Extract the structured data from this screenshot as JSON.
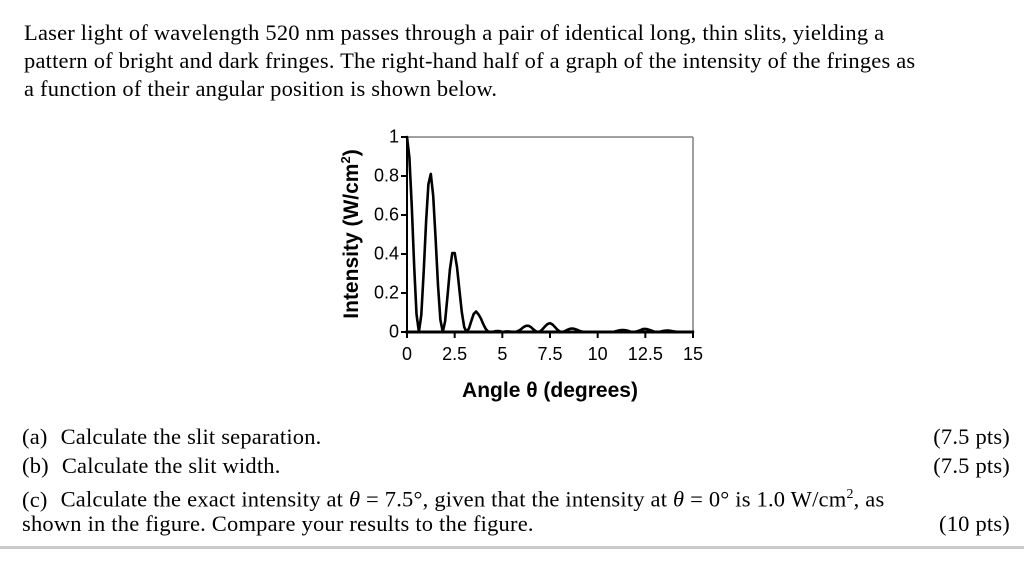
{
  "intro": {
    "lines": [
      "Laser light of wavelength 520 nm passes through a pair of identical long, thin slits, yielding a",
      "pattern of bright and dark fringes.  The right-hand half of a graph of the intensity of the fringes as",
      "a function of their angular position is shown below."
    ]
  },
  "chart_data": {
    "type": "line",
    "xlabel": "Angle θ (degrees)",
    "ylabel": "Intensity (W/cm2)",
    "ylabel_parts": {
      "main": "Intensity (W/cm",
      "sup": "2",
      "close": ")"
    },
    "xlim": [
      0,
      15
    ],
    "ylim": [
      0,
      1
    ],
    "x_ticks": [
      "0",
      "2.5",
      "5",
      "7.5",
      "10",
      "12.5",
      "15"
    ],
    "y_ticks": [
      "0",
      "0.2",
      "0.4",
      "0.6",
      "0.8",
      "1"
    ],
    "grid": false,
    "theta_start": 0,
    "theta_step": 0.125,
    "series": [
      {
        "name": "intensity",
        "values": [
          1,
          0.895,
          0.641,
          0.335,
          0.092,
          0,
          0.088,
          0.309,
          0.567,
          0.758,
          0.811,
          0.698,
          0.479,
          0.24,
          0.062,
          0,
          0.055,
          0.184,
          0.32,
          0.405,
          0.405,
          0.333,
          0.217,
          0.102,
          0.025,
          0,
          0.019,
          0.058,
          0.093,
          0.105,
          0.09,
          0.069,
          0.04,
          0.016,
          0.003,
          0,
          0.001,
          0.004,
          0.005,
          0.004,
          0,
          0.002,
          0.003,
          0.002,
          0.001,
          0,
          0.002,
          0.007,
          0.016,
          0.026,
          0.032,
          0.032,
          0.025,
          0.014,
          0.004,
          0,
          0.004,
          0.016,
          0.03,
          0.041,
          0.045,
          0.039,
          0.026,
          0.013,
          0.003,
          0,
          0.003,
          0.009,
          0.015,
          0.018,
          0.017,
          0.013,
          0.008,
          0.003,
          0.001,
          0,
          0,
          0.001,
          0.001,
          0.001,
          0,
          0.001,
          0.001,
          0.001,
          0,
          0,
          0,
          0.002,
          0.005,
          0.008,
          0.01,
          0.01,
          0.008,
          0.005,
          0.001,
          0,
          0.002,
          0.005,
          0.01,
          0.015,
          0.016,
          0.014,
          0.01,
          0.005,
          0.001,
          0,
          0.001,
          0.004,
          0.006,
          0.007,
          0.007,
          0.005,
          0.003,
          0.001,
          0,
          0,
          0,
          0,
          0.001,
          0,
          0
        ]
      }
    ],
    "colors": {
      "curve": "#000000",
      "axis": "#000000",
      "border": "#808080"
    }
  },
  "questions": {
    "a": {
      "label": "(a)",
      "text": "Calculate the slit separation.",
      "points": "(7.5 pts)"
    },
    "b": {
      "label": "(b)",
      "text": "Calculate the slit width.",
      "points": "(7.5 pts)"
    },
    "c": {
      "label": "(c)",
      "part1": "Calculate the exact intensity at ",
      "theta1": "θ",
      "part2": " = 7.5°, given that the intensity at ",
      "theta2": "θ",
      "part3": " = 0° is 1.0 W/cm",
      "sup": "2",
      "part4": ", as",
      "line2": "shown in the figure.   Compare your results to the figure.",
      "points": "(10 pts)"
    }
  }
}
